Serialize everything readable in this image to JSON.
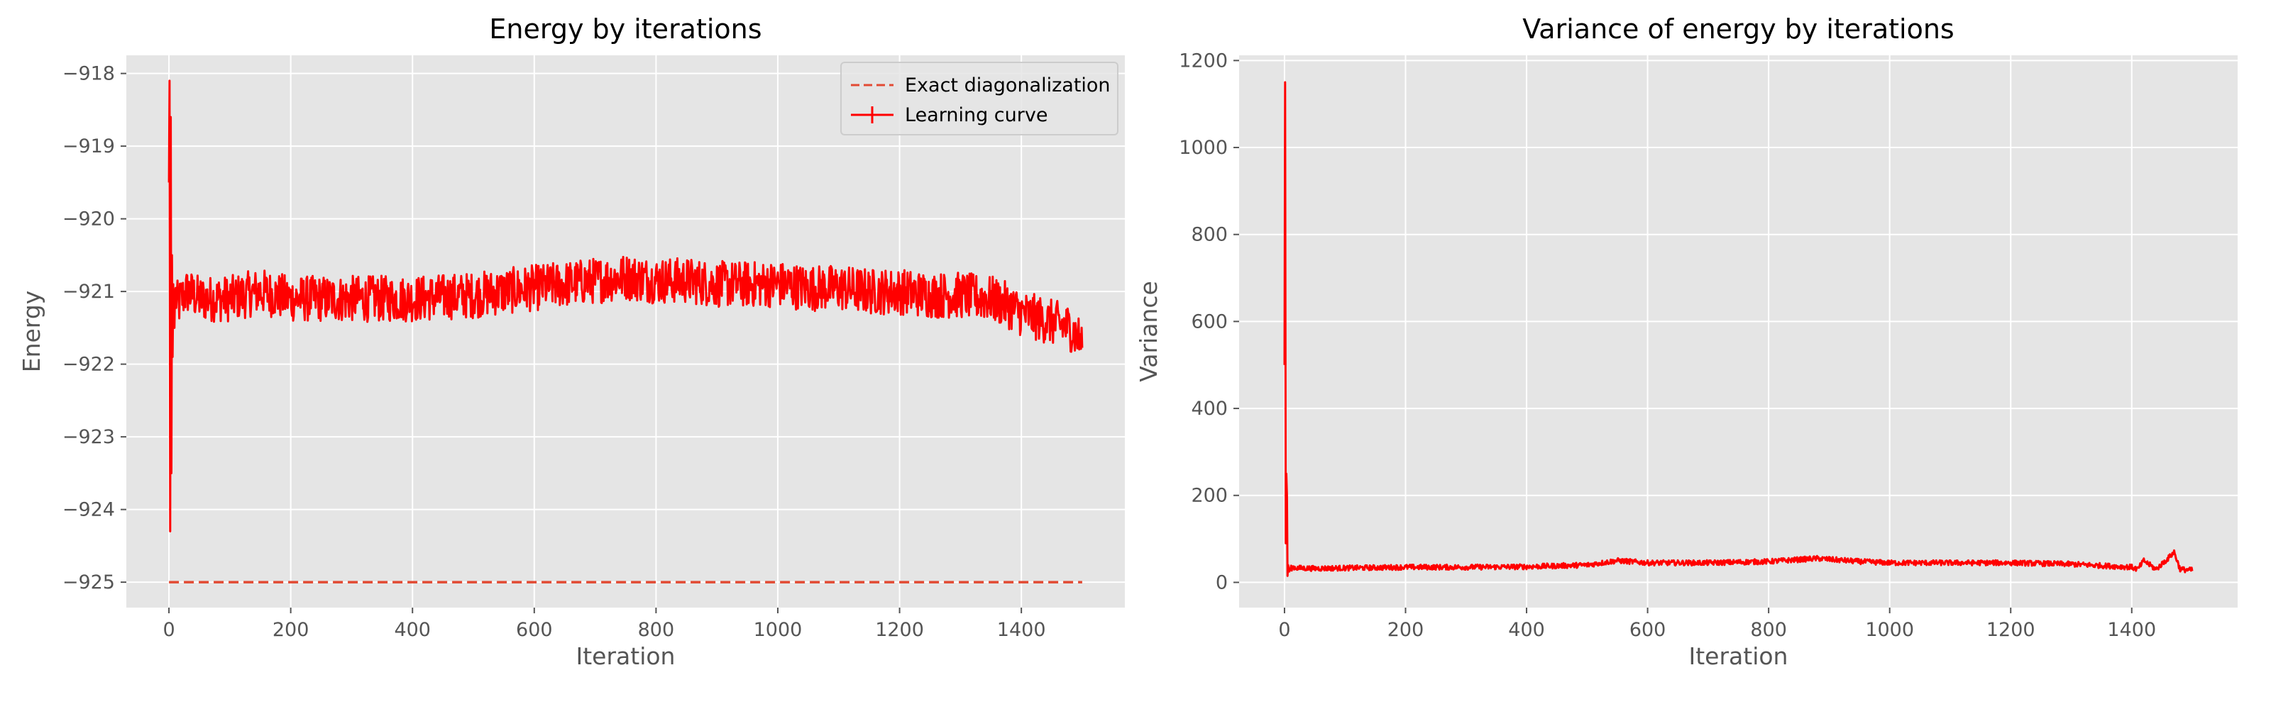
{
  "chart_data": [
    {
      "type": "line",
      "title": "Energy by iterations",
      "xlabel": "Iteration",
      "ylabel": "Energy",
      "xlim": [
        -70,
        1570
      ],
      "ylim": [
        -925.35,
        -917.75
      ],
      "xticks": [
        0,
        200,
        400,
        600,
        800,
        1000,
        1200,
        1400
      ],
      "yticks": [
        -918,
        -919,
        -920,
        -921,
        -922,
        -923,
        -924,
        -925
      ],
      "grid": true,
      "legend": {
        "position": "top-right",
        "entries": [
          {
            "label": "Exact diagonalization",
            "style": "dashed"
          },
          {
            "label": "Learning curve",
            "style": "solid-with-errorbar"
          }
        ]
      },
      "series": [
        {
          "name": "Exact diagonalization",
          "color": "#e24a33",
          "style": "dashed",
          "x": [
            0,
            1500
          ],
          "y": [
            -925.0,
            -925.0
          ]
        },
        {
          "name": "Learning curve",
          "color": "#ff0000",
          "style": "solid",
          "x": [
            0,
            1,
            2,
            3,
            4,
            5,
            6,
            7,
            8,
            9,
            10,
            12,
            15,
            20,
            30,
            50,
            100,
            150,
            200,
            300,
            400,
            500,
            550,
            600,
            650,
            700,
            750,
            800,
            850,
            900,
            950,
            1000,
            1050,
            1100,
            1150,
            1200,
            1250,
            1300,
            1350,
            1380,
            1400,
            1420,
            1440,
            1460,
            1480,
            1490,
            1500
          ],
          "y": [
            -919.5,
            -918.1,
            -924.3,
            -918.6,
            -923.5,
            -920.5,
            -921.9,
            -920.9,
            -921.3,
            -921.5,
            -921.0,
            -921.1,
            -921.2,
            -921.1,
            -921.0,
            -921.1,
            -921.1,
            -921.0,
            -921.1,
            -921.1,
            -921.1,
            -921.05,
            -921.0,
            -920.95,
            -920.9,
            -920.85,
            -920.8,
            -920.85,
            -920.85,
            -920.9,
            -920.9,
            -920.9,
            -920.95,
            -920.95,
            -921.0,
            -921.0,
            -921.05,
            -921.05,
            -921.1,
            -921.2,
            -921.3,
            -921.35,
            -921.4,
            -921.45,
            -921.5,
            -921.6,
            -921.7
          ],
          "noise_amplitude": 0.32
        }
      ]
    },
    {
      "type": "line",
      "title": "Variance of energy by iterations",
      "xlabel": "Iteration",
      "ylabel": "Variance",
      "xlim": [
        -75,
        1575
      ],
      "ylim": [
        -58,
        1212
      ],
      "xticks": [
        0,
        200,
        400,
        600,
        800,
        1000,
        1200,
        1400
      ],
      "yticks": [
        0,
        200,
        400,
        600,
        800,
        1000,
        1200
      ],
      "grid": true,
      "series": [
        {
          "color": "#ff0000",
          "style": "solid",
          "x": [
            0,
            1,
            2,
            3,
            4,
            5,
            6,
            7,
            8,
            10,
            15,
            20,
            50,
            100,
            150,
            200,
            300,
            400,
            500,
            550,
            600,
            700,
            800,
            880,
            950,
            1000,
            1100,
            1200,
            1300,
            1400,
            1410,
            1420,
            1440,
            1460,
            1470,
            1480,
            1500
          ],
          "y": [
            500,
            1150,
            90,
            250,
            200,
            15,
            40,
            30,
            25,
            32,
            35,
            33,
            32,
            33,
            34,
            35,
            35,
            36,
            40,
            50,
            45,
            45,
            48,
            55,
            48,
            45,
            45,
            45,
            42,
            35,
            30,
            50,
            30,
            55,
            70,
            30,
            28
          ],
          "noise_amplitude": 6
        }
      ]
    }
  ]
}
